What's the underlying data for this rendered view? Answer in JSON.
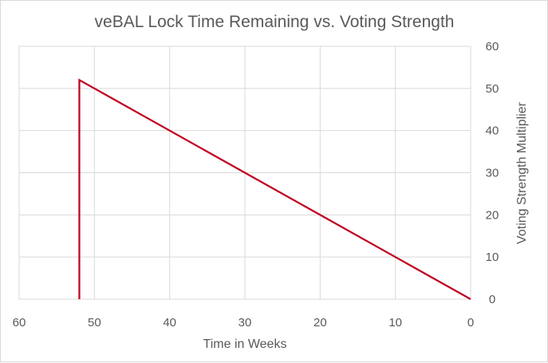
{
  "chart_data": {
    "type": "line",
    "title": "veBAL Lock Time Remaining vs. Voting Strength",
    "xlabel": "Time in Weeks",
    "ylabel": "Voting Strength Multiplier",
    "x_reversed": true,
    "xlim": [
      0,
      60
    ],
    "ylim": [
      0,
      60
    ],
    "x_ticks": [
      60,
      50,
      40,
      30,
      20,
      10,
      0
    ],
    "y_ticks": [
      0,
      10,
      20,
      30,
      40,
      50,
      60
    ],
    "y_axis_position": "right",
    "grid": true,
    "legend": "none",
    "series": [
      {
        "color": "#c00020",
        "points": [
          {
            "x": 52,
            "y": 0
          },
          {
            "x": 52,
            "y": 52
          },
          {
            "x": 0,
            "y": 0
          }
        ]
      }
    ]
  }
}
